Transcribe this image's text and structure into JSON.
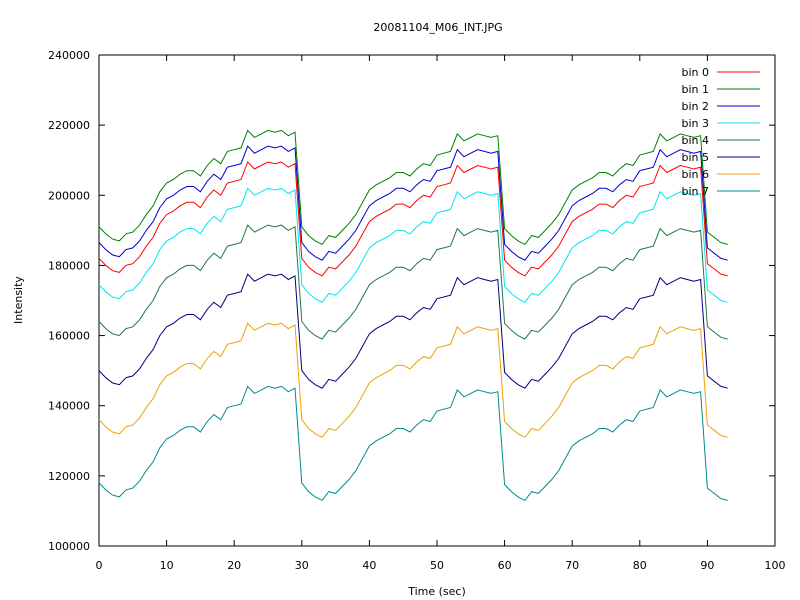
{
  "chart_data": {
    "type": "line",
    "title": "20081104_M06_INT.JPG",
    "xlabel": "Time (sec)",
    "ylabel": "Intensity",
    "xlim": [
      0,
      100
    ],
    "ylim": [
      100000,
      240000
    ],
    "xticks": [
      "0",
      "10",
      "20",
      "30",
      "40",
      "50",
      "60",
      "70",
      "80",
      "90",
      "100"
    ],
    "yticks": [
      "100000",
      "120000",
      "140000",
      "160000",
      "180000",
      "200000",
      "220000",
      "240000"
    ],
    "grid": false,
    "legend_position": "top-right",
    "x": [
      0,
      1,
      2,
      3,
      4,
      5,
      6,
      7,
      8,
      9,
      10,
      11,
      12,
      13,
      14,
      15,
      16,
      17,
      18,
      19,
      20,
      21,
      22,
      23,
      24,
      25,
      26,
      27,
      28,
      29,
      30,
      31,
      32,
      33,
      34,
      35,
      36,
      37,
      38,
      39,
      40,
      41,
      42,
      43,
      44,
      45,
      46,
      47,
      48,
      49,
      50,
      51,
      52,
      53,
      54,
      55,
      56,
      57,
      58,
      59,
      60,
      61,
      62,
      63,
      64,
      65,
      66,
      67,
      68,
      69,
      70,
      71,
      72,
      73,
      74,
      75,
      76,
      77,
      78,
      79,
      80,
      81,
      82,
      83,
      84,
      85,
      86,
      87,
      88,
      89,
      90,
      91,
      92,
      93
    ],
    "series": [
      {
        "name": "bin 0",
        "color": "#ff0000",
        "offset": 0
      },
      {
        "name": "bin 1",
        "color": "#008000",
        "offset": 9000
      },
      {
        "name": "bin 2",
        "color": "#0000cc",
        "offset": 4500
      },
      {
        "name": "bin 3",
        "color": "#00e5ee",
        "offset": -7500
      },
      {
        "name": "bin 4",
        "color": "#1f7a3f",
        "offset": -18000
      },
      {
        "name": "bin 5",
        "color": "#000080",
        "offset": -32000
      },
      {
        "name": "bin 6",
        "color": "#f0a000",
        "offset": -46000
      },
      {
        "name": "bin 7",
        "color": "#008b8b",
        "offset": -64000
      }
    ],
    "base_series": [
      182000,
      180000,
      178500,
      178000,
      180000,
      180500,
      182500,
      185500,
      188000,
      192000,
      194500,
      195500,
      197000,
      198000,
      198000,
      196500,
      199500,
      201500,
      200000,
      203500,
      204000,
      204500,
      209500,
      207500,
      208500,
      209500,
      209000,
      209500,
      208000,
      209000,
      182000,
      179500,
      178000,
      177000,
      179500,
      179000,
      181000,
      183000,
      185500,
      189000,
      192500,
      194000,
      195000,
      196000,
      197500,
      197500,
      196500,
      198500,
      200000,
      199500,
      202500,
      203000,
      203500,
      208500,
      206500,
      207500,
      208500,
      208000,
      207500,
      208000,
      181500,
      179500,
      178000,
      177000,
      179500,
      179000,
      181000,
      183000,
      185500,
      189000,
      192500,
      194000,
      195000,
      196000,
      197500,
      197500,
      196500,
      198500,
      200000,
      199500,
      202500,
      203000,
      203500,
      208500,
      206500,
      207500,
      208500,
      208000,
      207500,
      208000,
      180500,
      179000,
      177500,
      177000
    ]
  }
}
